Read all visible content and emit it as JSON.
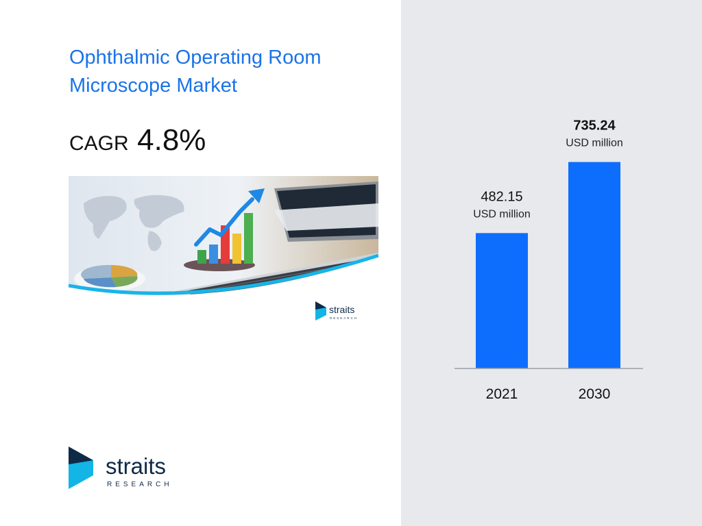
{
  "header": {
    "title_line1": "Ophthalmic Operating Room",
    "title_line2": "Microscope Market",
    "cagr_label": "CAGR",
    "cagr_value": "4.8%"
  },
  "brand": {
    "name": "straits",
    "tagline": "RESEARCH"
  },
  "colors": {
    "accent": "#1a73e8",
    "bar": "#0d6efd",
    "panel": "#e8e9ec",
    "logo_dark": "#0e2a47",
    "logo_cyan": "#12b5e6"
  },
  "chart_data": {
    "type": "bar",
    "categories": [
      "2021",
      "2030"
    ],
    "values": [
      482.15,
      735.24
    ],
    "unit": "USD million",
    "value_labels": [
      "482.15",
      "735.24"
    ],
    "title": "",
    "xlabel": "",
    "ylabel": "",
    "ylim": [
      0,
      800
    ],
    "grid": false,
    "legend": "none"
  }
}
